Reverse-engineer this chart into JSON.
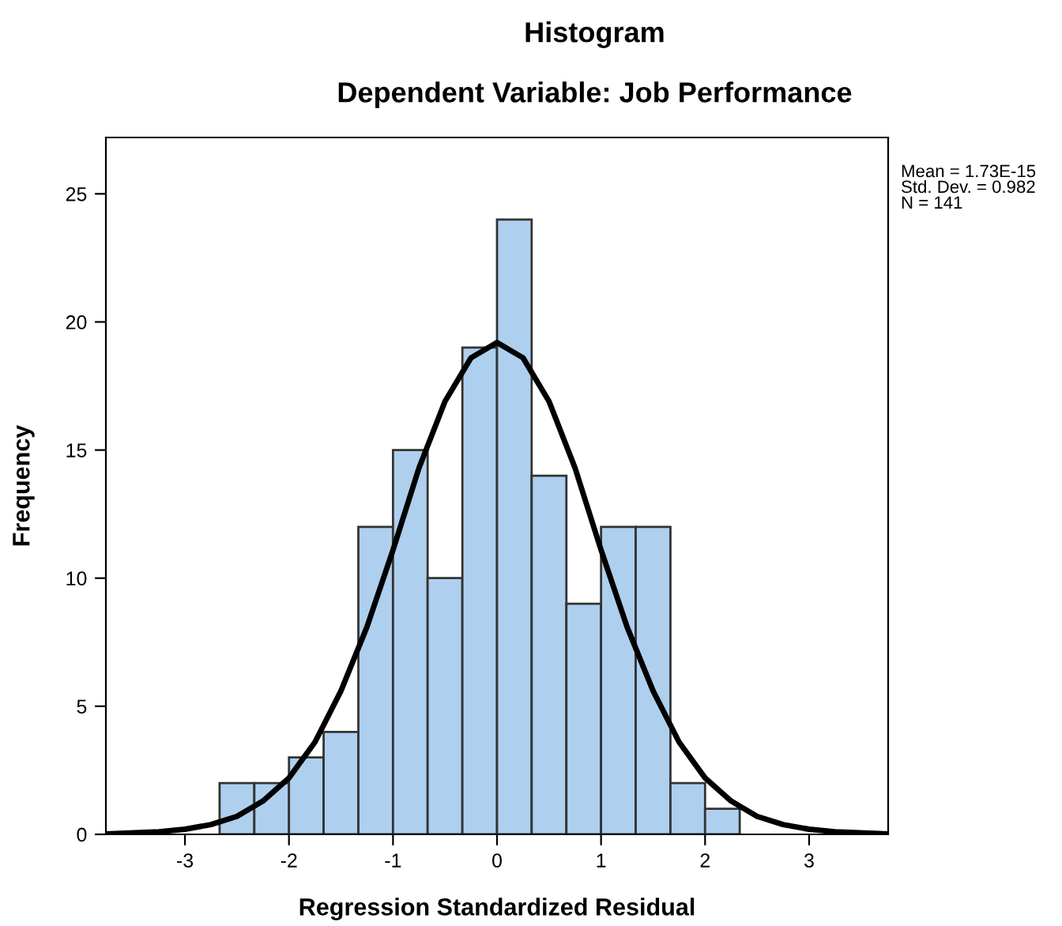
{
  "chart_data": {
    "type": "histogram",
    "title": "Histogram",
    "subtitle": "Dependent Variable: Job Performance",
    "xlabel": "Regression Standardized Residual",
    "ylabel": "Frequency",
    "bins": [
      -2.667,
      -2.333,
      -2,
      -1.667,
      -1.333,
      -1,
      -0.667,
      -0.333,
      0,
      0.333,
      0.667,
      1,
      1.333,
      1.667,
      2,
      2.333
    ],
    "values": [
      2,
      2,
      3,
      4,
      12,
      15,
      10,
      19,
      24,
      14,
      9,
      12,
      12,
      2,
      1
    ],
    "color": "#aed0ee",
    "series": [
      {
        "type": "line",
        "color": "#000000",
        "x": [
          -3.76,
          -3.25,
          -3,
          -2.75,
          -2.5,
          -2.25,
          -2,
          -1.75,
          -1.5,
          -1.25,
          -1,
          -0.75,
          -0.5,
          -0.25,
          0,
          0.25,
          0.5,
          0.75,
          1,
          1.25,
          1.5,
          1.75,
          2,
          2.25,
          2.5,
          2.75,
          3,
          3.25,
          3.76
        ],
        "values": [
          0.02,
          0.1,
          0.2,
          0.38,
          0.7,
          1.3,
          2.2,
          3.6,
          5.6,
          8.1,
          11.1,
          14.3,
          16.9,
          18.6,
          19.2,
          18.6,
          16.9,
          14.3,
          11.1,
          8.1,
          5.6,
          3.6,
          2.2,
          1.3,
          0.7,
          0.38,
          0.2,
          0.1,
          0.02
        ]
      }
    ],
    "xlim": [
      -3.76,
      3.76
    ],
    "ylim": [
      0,
      27.2
    ],
    "xticks": [
      {
        "value": -3,
        "label": "-3"
      },
      {
        "value": -2,
        "label": "-2"
      },
      {
        "value": -1,
        "label": "-1"
      },
      0,
      1,
      2,
      3
    ],
    "yticks": [
      0,
      5,
      10,
      15,
      20,
      25
    ],
    "annotations": [
      "Mean = 1.73E-15\nStd. Dev. = 0.982\nN = 141"
    ],
    "grid": false,
    "legend": false
  }
}
